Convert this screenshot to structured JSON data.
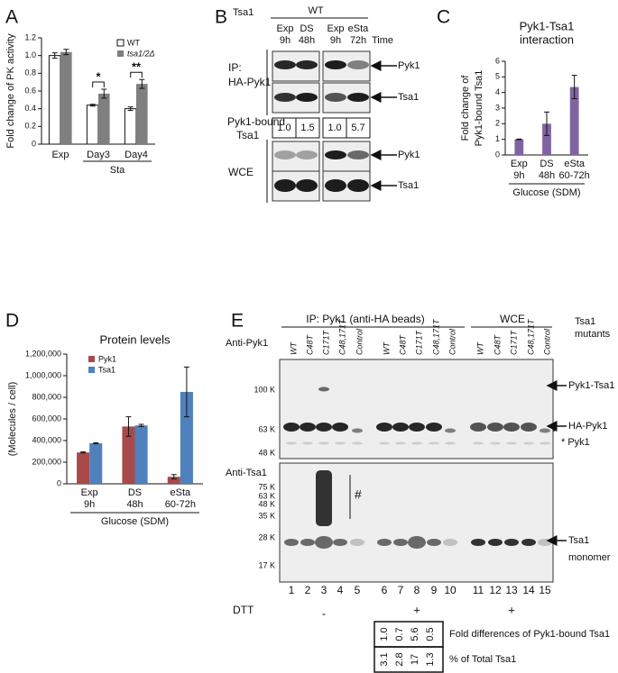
{
  "panel_labels": [
    "A",
    "B",
    "C",
    "D",
    "E"
  ],
  "chart_data": [
    {
      "type": "bar",
      "y_label": "Fold change of PK activity",
      "categories": [
        "Exp",
        "Day3",
        "Day4"
      ],
      "group_label": "Sta",
      "significance": [
        null,
        "*",
        "**"
      ],
      "series": [
        {
          "name": "WT",
          "color": "#ffffff",
          "values": [
            1.0,
            0.44,
            0.4
          ],
          "errors": [
            0.03,
            0.01,
            0.02
          ]
        },
        {
          "name": "tsa1/2Δ",
          "color": "#7f7f7f",
          "values": [
            1.04,
            0.57,
            0.68
          ],
          "errors": [
            0.03,
            0.05,
            0.05
          ]
        }
      ],
      "ylim": [
        0,
        1.2
      ],
      "yticks": [
        0,
        0.2,
        0.4,
        0.6,
        0.8,
        {
          "value": 1,
          "label": "1.0"
        },
        1.2
      ],
      "legend": "upper right"
    },
    {
      "type": "bar",
      "title": [
        "Pyk1-Tsa1",
        "interaction"
      ],
      "y_label": [
        "Fold change of",
        "Pyk1-bound Tsa1"
      ],
      "categories": [
        [
          "Exp",
          "9h"
        ],
        [
          "DS",
          "48h"
        ],
        [
          "eSta",
          "60-72h"
        ]
      ],
      "group_label": "Glucose (SDM)",
      "series": [
        {
          "color": "#8064a2",
          "values": [
            1.0,
            2.0,
            4.35
          ],
          "errors": [
            0.02,
            0.75,
            0.75
          ]
        }
      ],
      "ylim": [
        0,
        6
      ],
      "yticks": [
        0,
        1,
        2,
        3,
        4,
        5,
        6
      ]
    },
    {
      "type": "bar",
      "title": "Protein levels",
      "y_label": "(Molecules / cell)",
      "categories": [
        [
          "Exp",
          "9h"
        ],
        [
          "DS",
          "48h"
        ],
        [
          "eSta",
          "60-72h"
        ]
      ],
      "group_label": "Glucose (SDM)",
      "series": [
        {
          "name": "Pyk1",
          "color": "#a94a4a",
          "values": [
            290000,
            530000,
            65000
          ],
          "errors": [
            5000,
            90000,
            20000
          ]
        },
        {
          "name": "Tsa1",
          "color": "#4f81bd",
          "values": [
            375000,
            540000,
            850000
          ],
          "errors": [
            5000,
            10000,
            230000
          ]
        }
      ],
      "ylim": [
        0,
        1200000
      ],
      "yticks": [
        0,
        {
          "value": 200000,
          "label": "200,000"
        },
        {
          "value": 400000,
          "label": "400,000"
        },
        {
          "value": 600000,
          "label": "600,000"
        },
        {
          "value": 800000,
          "label": "800,000"
        },
        {
          "value": 1000000,
          "label": "1,000,000"
        },
        {
          "value": 1200000,
          "label": "1,200,000"
        }
      ],
      "legend": "upper left"
    }
  ],
  "blot_b": {
    "genotype_label": "Tsa1",
    "genotype": "WT",
    "lanes": [
      [
        "Exp",
        "9h"
      ],
      [
        "DS",
        "48h"
      ],
      [
        "Exp",
        "9h"
      ],
      [
        "eSta",
        "72h"
      ]
    ],
    "time_label": "Time",
    "ip_label": [
      "IP:",
      "HA-Pyk1"
    ],
    "ip_bands": [
      "Pyk1",
      "Tsa1"
    ],
    "ratio_label": [
      "Pyk1-bound",
      "Tsa1"
    ],
    "ratios": [
      "1.0",
      "1.5",
      "1.0",
      "5.7"
    ],
    "wce_label": "WCE",
    "wce_bands": [
      "Pyk1",
      "Tsa1"
    ]
  },
  "blot_e": {
    "ip_title": "IP: Pyk1 (anti-HA beads)",
    "wce_title": "WCE",
    "mutants_label": [
      "Tsa1",
      "mutants"
    ],
    "lane_labels": [
      "WT",
      "C48T",
      "C171T",
      "C48,171T",
      "Control",
      "WT",
      "C48T",
      "C171T",
      "C48,171T",
      "Control",
      "WT",
      "C48T",
      "C171T",
      "C48,171T",
      "Control"
    ],
    "pyk1_blot": {
      "label": "Anti-Pyk1",
      "markers": [
        "100 K",
        "63 K",
        "48 K"
      ],
      "bands": [
        "Pyk1-Tsa1",
        "HA-Pyk1",
        "* Pyk1"
      ],
      "asterisk": "*"
    },
    "tsa1_blot": {
      "label": "Anti-Tsa1",
      "markers": [
        "75 K",
        "63 K",
        "48 K",
        "35 K",
        "28 K",
        "17 K"
      ],
      "oligomer": "#",
      "band": [
        "Tsa1",
        "monomer"
      ]
    },
    "lane_numbers": [
      1,
      2,
      3,
      4,
      5,
      6,
      7,
      8,
      9,
      10,
      11,
      12,
      13,
      14,
      15
    ],
    "dtt_label": "DTT",
    "dtt": [
      "-",
      "+",
      "+"
    ],
    "quant": {
      "rows": [
        [
          "1.0",
          "0.7",
          "5.6",
          "0.5"
        ],
        [
          "3.1",
          "2.8",
          "17",
          "1.3"
        ]
      ],
      "row_labels": [
        "Fold differences of Pyk1-bound Tsa1",
        "% of Total Tsa1"
      ]
    }
  }
}
